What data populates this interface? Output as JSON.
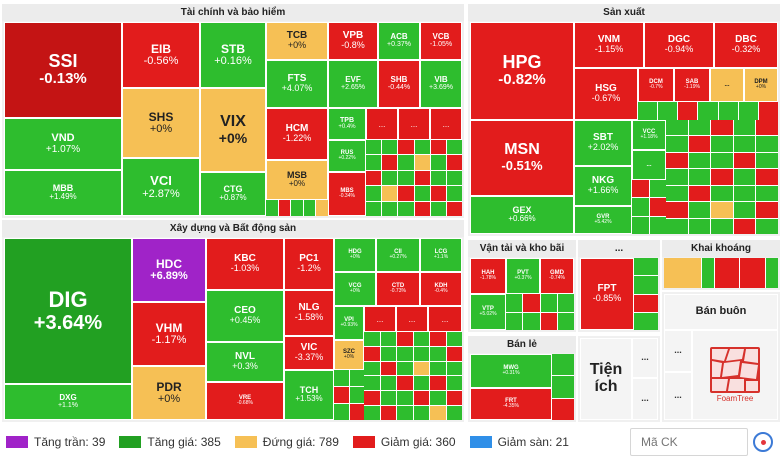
{
  "sectors": {
    "finance": "Tài chính và bảo hiểm",
    "production": "Sản xuất",
    "construction": "Xây dựng và Bất động sản",
    "transport": "Vận tải và kho bãi",
    "other": "...",
    "mining": "Khai khoáng",
    "retail": "Bán lẻ",
    "wholesale": "Bán buôn",
    "utilities": "Tiện ích"
  },
  "tiles": {
    "SSI": {
      "t": "SSI",
      "c": "-0.13%"
    },
    "EIB": {
      "t": "EIB",
      "c": "-0.56%"
    },
    "STB": {
      "t": "STB",
      "c": "+0.16%"
    },
    "TCB": {
      "t": "TCB",
      "c": "+0%"
    },
    "VPB": {
      "t": "VPB",
      "c": "-0.8%"
    },
    "ACB": {
      "t": "ACB",
      "c": "+0.37%"
    },
    "VCB": {
      "t": "VCB",
      "c": "-1.05%"
    },
    "SHS": {
      "t": "SHS",
      "c": "+0%"
    },
    "VIX": {
      "t": "VIX",
      "c": "+0%"
    },
    "FTS": {
      "t": "FTS",
      "c": "+4.07%"
    },
    "EVF": {
      "t": "EVF",
      "c": "+2.65%"
    },
    "SHB": {
      "t": "SHB",
      "c": "-0.44%"
    },
    "VIB": {
      "t": "VIB",
      "c": "+3.69%"
    },
    "VND": {
      "t": "VND",
      "c": "+1.07%"
    },
    "HCM": {
      "t": "HCM",
      "c": "-1.22%"
    },
    "TPB": {
      "t": "TPB",
      "c": "+0.4%"
    },
    "VCI": {
      "t": "VCI",
      "c": "+2.87%"
    },
    "RUS": {
      "t": "RUS",
      "c": "+0.22%"
    },
    "MBB": {
      "t": "MBB",
      "c": "+1.49%"
    },
    "CTG": {
      "t": "CTG",
      "c": "+0.87%"
    },
    "MSB": {
      "t": "MSB",
      "c": "+0%"
    },
    "MBS": {
      "t": "MBS",
      "c": "-0.34%"
    },
    "HPG": {
      "t": "HPG",
      "c": "-0.82%"
    },
    "VNM": {
      "t": "VNM",
      "c": "-1.15%"
    },
    "DGC": {
      "t": "DGC",
      "c": "-0.94%"
    },
    "DBC": {
      "t": "DBC",
      "c": "-0.32%"
    },
    "HSG": {
      "t": "HSG",
      "c": "-0.67%"
    },
    "DCM": {
      "t": "DCM",
      "c": "-0.7%"
    },
    "SAB": {
      "t": "SAB",
      "c": "-1.19%"
    },
    "DPM": {
      "t": "DPM",
      "c": "+0%"
    },
    "MSN": {
      "t": "MSN",
      "c": "-0.51%"
    },
    "SBT": {
      "t": "SBT",
      "c": "+2.02%"
    },
    "VCC": {
      "t": "VCC",
      "c": "+1.18%"
    },
    "NKG": {
      "t": "NKG",
      "c": "+1.66%"
    },
    "GEX": {
      "t": "GEX",
      "c": "+0.66%"
    },
    "GVR": {
      "t": "GVR",
      "c": "+5.42%"
    },
    "DIG": {
      "t": "DIG",
      "c": "+3.64%"
    },
    "HDC": {
      "t": "HDC",
      "c": "+6.89%"
    },
    "KBC": {
      "t": "KBC",
      "c": "-1.03%"
    },
    "PC1": {
      "t": "PC1",
      "c": "-1.2%"
    },
    "HDG": {
      "t": "HDG",
      "c": "+0%"
    },
    "CII": {
      "t": "CII",
      "c": "+0.27%"
    },
    "LCG": {
      "t": "LCG",
      "c": "+1.1%"
    },
    "VCG": {
      "t": "VCG",
      "c": "+0%"
    },
    "CTD": {
      "t": "CTD",
      "c": "-0.73%"
    },
    "KDH": {
      "t": "KDH",
      "c": "-0.4%"
    },
    "CEO": {
      "t": "CEO",
      "c": "+0.45%"
    },
    "NLG": {
      "t": "NLG",
      "c": "-1.58%"
    },
    "VHM": {
      "t": "VHM",
      "c": "-1.17%"
    },
    "NVL": {
      "t": "NVL",
      "c": "+0.3%"
    },
    "VIC": {
      "t": "VIC",
      "c": "-3.37%"
    },
    "VPI": {
      "t": "VPI",
      "c": "+0.93%"
    },
    "SZC": {
      "t": "SZC",
      "c": "+0%"
    },
    "PDR": {
      "t": "PDR",
      "c": "+0%"
    },
    "VRE": {
      "t": "VRE",
      "c": "-0.68%"
    },
    "TCH": {
      "t": "TCH",
      "c": "+1.53%"
    },
    "DXG": {
      "t": "DXG",
      "c": "+1.1%"
    },
    "HAH": {
      "t": "HAH",
      "c": "-1.78%"
    },
    "PVT": {
      "t": "PVT",
      "c": "+0.37%"
    },
    "GMD": {
      "t": "GMD",
      "c": "-0.74%"
    },
    "VTP": {
      "t": "VTP",
      "c": "+5.02%"
    },
    "FPT": {
      "t": "FPT",
      "c": "-0.85%"
    },
    "MWG": {
      "t": "MWG",
      "c": "+0.31%"
    },
    "FRT": {
      "t": "FRT",
      "c": "-4.35%"
    }
  },
  "dots": "...",
  "legend": {
    "ceiling": "Tăng trần: 39",
    "up": "Tăng giá: 385",
    "ref": "Đứng giá: 789",
    "down": "Giảm giá: 360",
    "floor": "Giảm sàn: 21"
  },
  "colors": {
    "ceiling": "#a023c8",
    "up": "#22a022",
    "ref": "#f6c055",
    "down": "#e21c1c",
    "floor": "#2f8fe8"
  },
  "search": {
    "placeholder": "Mã CK"
  },
  "logo": "FoamTree"
}
